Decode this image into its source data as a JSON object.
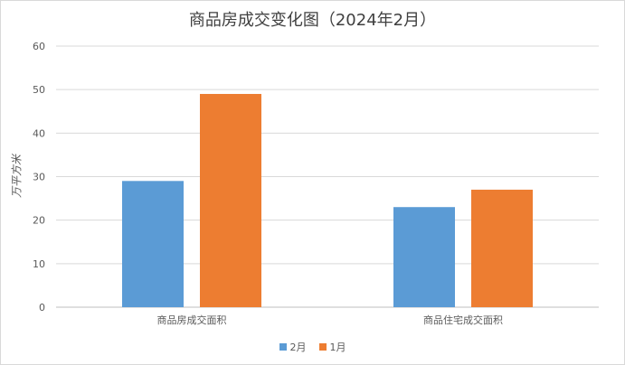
{
  "chart_data": {
    "type": "bar",
    "title": "商品房成交变化图（2024年2月）",
    "ylabel": "万平方米",
    "xlabel": "",
    "categories": [
      "商品房成交面积",
      "商品住宅成交面积"
    ],
    "series": [
      {
        "name": "2月",
        "values": [
          29,
          23
        ],
        "color": "#5b9bd5"
      },
      {
        "name": "1月",
        "values": [
          49,
          27
        ],
        "color": "#ed7d31"
      }
    ],
    "ylim": [
      0,
      60
    ],
    "yticks": [
      0,
      10,
      20,
      30,
      40,
      50,
      60
    ],
    "grid": true,
    "legend_position": "bottom"
  }
}
